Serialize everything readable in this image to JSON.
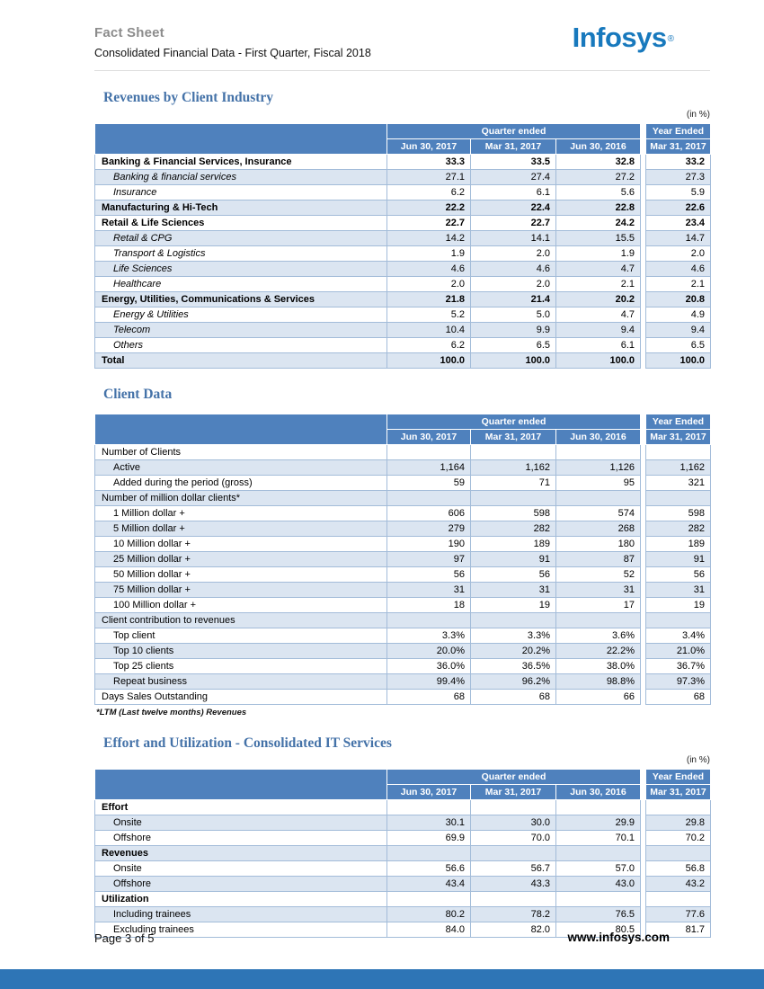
{
  "page": {
    "header": {
      "title": "Fact Sheet",
      "subtitle": "Consolidated Financial Data - First Quarter, Fiscal 2018",
      "logo_text": "Infosys",
      "logo_registered": "®"
    },
    "footer": {
      "page_number": "Page 3 of 5",
      "website": "www.infosys.com"
    }
  },
  "colors": {
    "header_blue": "#4f81bd",
    "row_stripe": "#dbe5f1",
    "cell_border": "#a3bcd9",
    "section_title": "#4472a8",
    "logo_blue": "#1879bd",
    "footer_bar": "#2e75b6"
  },
  "column_headers": {
    "quarter_group": "Quarter ended",
    "year_group": "Year Ended",
    "quarters": [
      "Jun 30, 2017",
      "Mar 31, 2017",
      "Jun 30, 2016"
    ],
    "year": "Mar 31, 2017"
  },
  "tables": [
    {
      "id": "revenues",
      "title": "Revenues by Client Industry",
      "unit": "(in %)",
      "rows": [
        {
          "label": "Banking & Financial Services, Insurance",
          "style": "bold",
          "values": [
            "33.3",
            "33.5",
            "32.8",
            "33.2"
          ]
        },
        {
          "label": "Banking & financial services",
          "style": "italic",
          "values": [
            "27.1",
            "27.4",
            "27.2",
            "27.3"
          ]
        },
        {
          "label": "Insurance",
          "style": "italic",
          "values": [
            "6.2",
            "6.1",
            "5.6",
            "5.9"
          ]
        },
        {
          "label": "Manufacturing & Hi-Tech",
          "style": "bold",
          "values": [
            "22.2",
            "22.4",
            "22.8",
            "22.6"
          ]
        },
        {
          "label": "Retail & Life Sciences",
          "style": "bold",
          "values": [
            "22.7",
            "22.7",
            "24.2",
            "23.4"
          ]
        },
        {
          "label": "Retail & CPG",
          "style": "italic",
          "values": [
            "14.2",
            "14.1",
            "15.5",
            "14.7"
          ]
        },
        {
          "label": "Transport & Logistics",
          "style": "italic",
          "values": [
            "1.9",
            "2.0",
            "1.9",
            "2.0"
          ]
        },
        {
          "label": "Life Sciences",
          "style": "italic",
          "values": [
            "4.6",
            "4.6",
            "4.7",
            "4.6"
          ]
        },
        {
          "label": "Healthcare",
          "style": "italic",
          "values": [
            "2.0",
            "2.0",
            "2.1",
            "2.1"
          ]
        },
        {
          "label": "Energy, Utilities, Communications & Services",
          "style": "bold",
          "values": [
            "21.8",
            "21.4",
            "20.2",
            "20.8"
          ]
        },
        {
          "label": "Energy & Utilities",
          "style": "italic",
          "values": [
            "5.2",
            "5.0",
            "4.7",
            "4.9"
          ]
        },
        {
          "label": "Telecom",
          "style": "italic",
          "values": [
            "10.4",
            "9.9",
            "9.4",
            "9.4"
          ]
        },
        {
          "label": "Others",
          "style": "italic",
          "values": [
            "6.2",
            "6.5",
            "6.1",
            "6.5"
          ]
        },
        {
          "label": "Total",
          "style": "total",
          "values": [
            "100.0",
            "100.0",
            "100.0",
            "100.0"
          ]
        }
      ]
    },
    {
      "id": "clients",
      "title": "Client Data",
      "footnote": "*LTM (Last twelve months) Revenues",
      "rows": [
        {
          "label": "Number of Clients",
          "style": "section",
          "values": []
        },
        {
          "label": "Active",
          "style": "indent",
          "values": [
            "1,164",
            "1,162",
            "1,126",
            "1,162"
          ]
        },
        {
          "label": "Added during the period (gross)",
          "style": "indent",
          "values": [
            "59",
            "71",
            "95",
            "321"
          ]
        },
        {
          "label": "Number of million dollar clients*",
          "style": "section",
          "values": []
        },
        {
          "label": "1 Million dollar +",
          "style": "indent",
          "values": [
            "606",
            "598",
            "574",
            "598"
          ]
        },
        {
          "label": "5 Million dollar +",
          "style": "indent",
          "values": [
            "279",
            "282",
            "268",
            "282"
          ]
        },
        {
          "label": "10 Million dollar +",
          "style": "indent",
          "values": [
            "190",
            "189",
            "180",
            "189"
          ]
        },
        {
          "label": "25 Million dollar +",
          "style": "indent",
          "values": [
            "97",
            "91",
            "87",
            "91"
          ]
        },
        {
          "label": "50 Million dollar +",
          "style": "indent",
          "values": [
            "56",
            "56",
            "52",
            "56"
          ]
        },
        {
          "label": "75 Million dollar +",
          "style": "indent",
          "values": [
            "31",
            "31",
            "31",
            "31"
          ]
        },
        {
          "label": "100 Million dollar +",
          "style": "indent",
          "values": [
            "18",
            "19",
            "17",
            "19"
          ]
        },
        {
          "label": "Client contribution to revenues",
          "style": "section",
          "values": []
        },
        {
          "label": "Top client",
          "style": "indent",
          "values": [
            "3.3%",
            "3.3%",
            "3.6%",
            "3.4%"
          ]
        },
        {
          "label": "Top 10 clients",
          "style": "indent",
          "values": [
            "20.0%",
            "20.2%",
            "22.2%",
            "21.0%"
          ]
        },
        {
          "label": "Top 25 clients",
          "style": "indent",
          "values": [
            "36.0%",
            "36.5%",
            "38.0%",
            "36.7%"
          ]
        },
        {
          "label": "Repeat business",
          "style": "indent",
          "values": [
            "99.4%",
            "96.2%",
            "98.8%",
            "97.3%"
          ]
        },
        {
          "label": "Days Sales Outstanding",
          "style": "flush",
          "values": [
            "68",
            "68",
            "66",
            "68"
          ]
        }
      ]
    },
    {
      "id": "effort",
      "title": "Effort and Utilization - Consolidated IT Services",
      "unit": "(in %)",
      "rows": [
        {
          "label": "Effort",
          "style": "section-bold",
          "values": []
        },
        {
          "label": "Onsite",
          "style": "indent",
          "values": [
            "30.1",
            "30.0",
            "29.9",
            "29.8"
          ]
        },
        {
          "label": "Offshore",
          "style": "indent",
          "values": [
            "69.9",
            "70.0",
            "70.1",
            "70.2"
          ]
        },
        {
          "label": "Revenues",
          "style": "section-bold",
          "values": []
        },
        {
          "label": "Onsite",
          "style": "indent",
          "values": [
            "56.6",
            "56.7",
            "57.0",
            "56.8"
          ]
        },
        {
          "label": "Offshore",
          "style": "indent",
          "values": [
            "43.4",
            "43.3",
            "43.0",
            "43.2"
          ]
        },
        {
          "label": "Utilization",
          "style": "section-bold",
          "values": []
        },
        {
          "label": "Including trainees",
          "style": "indent",
          "values": [
            "80.2",
            "78.2",
            "76.5",
            "77.6"
          ]
        },
        {
          "label": "Excluding trainees",
          "style": "indent",
          "values": [
            "84.0",
            "82.0",
            "80.5",
            "81.7"
          ]
        }
      ]
    }
  ]
}
